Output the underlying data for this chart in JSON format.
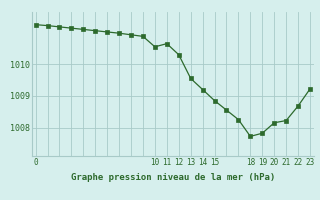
{
  "x": [
    0,
    1,
    2,
    3,
    4,
    5,
    6,
    7,
    8,
    9,
    10,
    11,
    12,
    13,
    14,
    15,
    16,
    17,
    18,
    19,
    20,
    21,
    22,
    23
  ],
  "y": [
    1011.25,
    1011.22,
    1011.18,
    1011.14,
    1011.1,
    1011.06,
    1011.02,
    1010.98,
    1010.93,
    1010.88,
    1010.55,
    1010.65,
    1010.3,
    1009.55,
    1009.2,
    1008.85,
    1008.55,
    1008.25,
    1007.72,
    1007.82,
    1008.15,
    1008.22,
    1008.68,
    1009.22
  ],
  "line_color": "#2d6a2d",
  "marker_color": "#2d6a2d",
  "bg_color": "#d6efed",
  "grid_color": "#a8cac8",
  "xlabel": "Graphe pression niveau de la mer (hPa)",
  "xtick_positions": [
    0,
    10,
    11,
    12,
    13,
    14,
    15,
    18,
    19,
    20,
    21,
    22,
    23
  ],
  "xtick_labels": [
    "0",
    "10",
    "11",
    "12",
    "13",
    "14",
    "15",
    "18",
    "19",
    "20",
    "21",
    "22",
    "23"
  ],
  "ytick_values": [
    1008,
    1009,
    1010
  ],
  "ylim": [
    1007.1,
    1011.65
  ],
  "xlim": [
    -0.3,
    23.3
  ]
}
